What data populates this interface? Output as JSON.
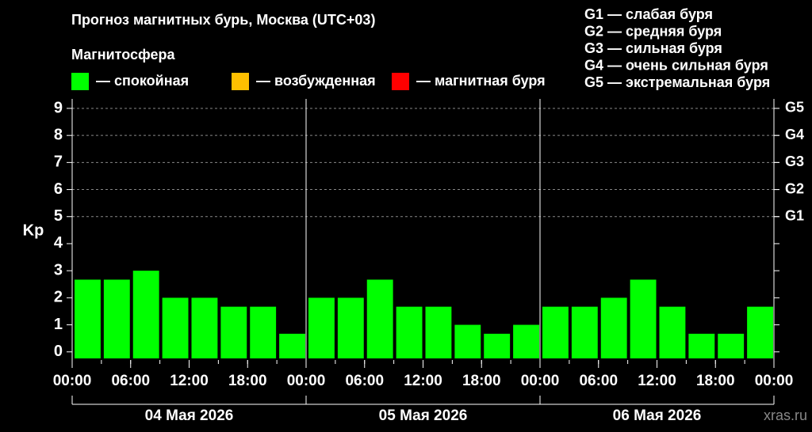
{
  "chart_data": {
    "type": "bar",
    "title": "Прогноз магнитных бурь, Москва (UTC+03)",
    "legend_title": "Магнитосфера",
    "legend": [
      {
        "name": "— спокойная",
        "color": "#00ff00"
      },
      {
        "name": "— возбужденная",
        "color": "#ffc000"
      },
      {
        "name": "— магнитная буря",
        "color": "#ff0000"
      }
    ],
    "g_scale": [
      "G1 — слабая буря",
      "G2 — средняя буря",
      "G3 — сильная буря",
      "G4 — очень сильная буря",
      "G5 — экстремальная буря"
    ],
    "y_label": "Kp",
    "x": [
      0,
      3,
      6,
      9,
      12,
      15,
      18,
      21,
      24,
      27,
      30,
      33,
      36,
      39,
      42,
      45,
      48,
      51,
      54,
      57,
      60,
      63,
      66,
      69
    ],
    "values": [
      2.67,
      2.67,
      3,
      2,
      2,
      1.67,
      1.67,
      0.67,
      2,
      2,
      2.67,
      1.67,
      1.67,
      1,
      0.67,
      1,
      1.67,
      1.67,
      2,
      2.67,
      1.67,
      0.67,
      0.67,
      1.67
    ],
    "color": "#00ff00",
    "xlim": [
      0,
      72
    ],
    "xticks": [
      {
        "value": 0,
        "label": "00:00"
      },
      {
        "value": 6,
        "label": "06:00"
      },
      {
        "value": 12,
        "label": "12:00"
      },
      {
        "value": 18,
        "label": "18:00"
      },
      {
        "value": 24,
        "label": "00:00"
      },
      {
        "value": 30,
        "label": "06:00"
      },
      {
        "value": 36,
        "label": "12:00"
      },
      {
        "value": 42,
        "label": "18:00"
      },
      {
        "value": 48,
        "label": "00:00"
      },
      {
        "value": 54,
        "label": "06:00"
      },
      {
        "value": 60,
        "label": "12:00"
      },
      {
        "value": 66,
        "label": "18:00"
      },
      {
        "value": 72,
        "label": "00:00"
      }
    ],
    "day_separators": [
      24,
      48
    ],
    "days": [
      "04 Мая 2026",
      "05 Мая 2026",
      "06 Мая 2026"
    ],
    "ylim": [
      -0.3,
      9.35
    ],
    "yticks": [
      0,
      1,
      2,
      3,
      4,
      5,
      6,
      7,
      8,
      9
    ],
    "y2lim": [
      -0.3,
      9.35
    ],
    "y2ticks": [
      {
        "value": 5,
        "label": "G1"
      },
      {
        "value": 6,
        "label": "G2"
      },
      {
        "value": 7,
        "label": "G3"
      },
      {
        "value": 8,
        "label": "G4"
      },
      {
        "value": 9,
        "label": "G5"
      }
    ],
    "grid": true,
    "watermark": "xras.ru"
  }
}
